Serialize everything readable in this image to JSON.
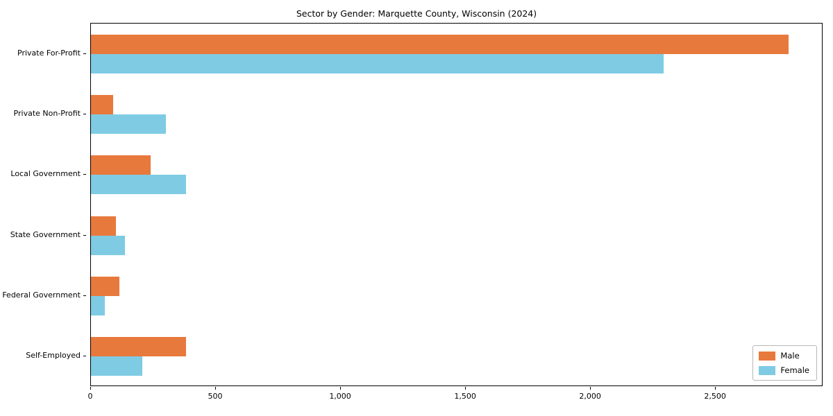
{
  "chart_data": {
    "type": "bar",
    "orientation": "horizontal",
    "title": "Sector by Gender: Marquette County, Wisconsin (2024)",
    "categories": [
      "Private For-Profit",
      "Private Non-Profit",
      "Local Government",
      "State Government",
      "Federal Government",
      "Self-Employed"
    ],
    "series": [
      {
        "name": "Male",
        "color": "#e8793c",
        "values": [
          2790,
          90,
          240,
          100,
          115,
          380
        ]
      },
      {
        "name": "Female",
        "color": "#7fcbe4",
        "values": [
          2290,
          300,
          380,
          135,
          55,
          205
        ]
      }
    ],
    "xlabel": "",
    "ylabel": "",
    "xlim": [
      0,
      2930
    ],
    "x_ticks": [
      0,
      500,
      1000,
      1500,
      2000,
      2500
    ],
    "x_tick_labels": [
      "0",
      "500",
      "1,000",
      "1,500",
      "2,000",
      "2,500"
    ],
    "grid": false,
    "legend_position": "lower right"
  }
}
